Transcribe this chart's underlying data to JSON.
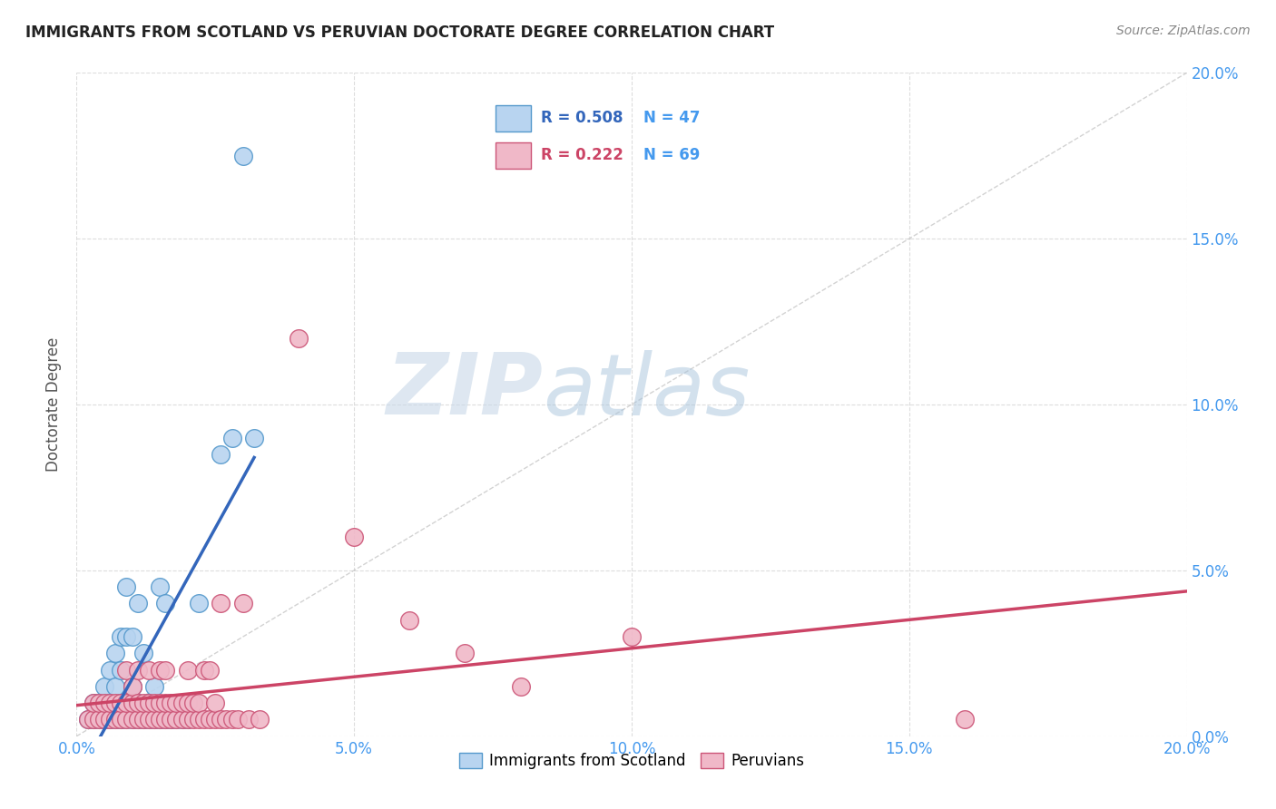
{
  "title": "IMMIGRANTS FROM SCOTLAND VS PERUVIAN DOCTORATE DEGREE CORRELATION CHART",
  "source": "Source: ZipAtlas.com",
  "ylabel": "Doctorate Degree",
  "xlim": [
    0.0,
    0.2
  ],
  "ylim": [
    0.0,
    0.2
  ],
  "xticks": [
    0.0,
    0.05,
    0.1,
    0.15,
    0.2
  ],
  "yticks": [
    0.0,
    0.05,
    0.1,
    0.15,
    0.2
  ],
  "scotland_color": "#b8d4f0",
  "scotland_edge": "#5599cc",
  "peru_color": "#f0b8c8",
  "peru_edge": "#cc5577",
  "scotland_R": 0.508,
  "scotland_N": 47,
  "peru_R": 0.222,
  "peru_N": 69,
  "tick_color": "#4499ee",
  "regression_scotland": "#3366bb",
  "regression_peru": "#cc4466",
  "diagonal_color": "#c0c0c0",
  "watermark_color": "#c8ddf0",
  "title_color": "#222222",
  "background_color": "#ffffff",
  "grid_color": "#dddddd",
  "scotland_points": [
    [
      0.002,
      0.005
    ],
    [
      0.003,
      0.005
    ],
    [
      0.003,
      0.01
    ],
    [
      0.004,
      0.005
    ],
    [
      0.004,
      0.01
    ],
    [
      0.005,
      0.005
    ],
    [
      0.005,
      0.01
    ],
    [
      0.005,
      0.015
    ],
    [
      0.006,
      0.005
    ],
    [
      0.006,
      0.01
    ],
    [
      0.006,
      0.02
    ],
    [
      0.007,
      0.005
    ],
    [
      0.007,
      0.015
    ],
    [
      0.007,
      0.025
    ],
    [
      0.008,
      0.005
    ],
    [
      0.008,
      0.01
    ],
    [
      0.008,
      0.02
    ],
    [
      0.008,
      0.03
    ],
    [
      0.009,
      0.005
    ],
    [
      0.009,
      0.03
    ],
    [
      0.009,
      0.045
    ],
    [
      0.01,
      0.005
    ],
    [
      0.01,
      0.01
    ],
    [
      0.01,
      0.015
    ],
    [
      0.01,
      0.03
    ],
    [
      0.011,
      0.005
    ],
    [
      0.011,
      0.01
    ],
    [
      0.011,
      0.04
    ],
    [
      0.012,
      0.005
    ],
    [
      0.012,
      0.025
    ],
    [
      0.013,
      0.005
    ],
    [
      0.013,
      0.01
    ],
    [
      0.014,
      0.005
    ],
    [
      0.014,
      0.015
    ],
    [
      0.015,
      0.005
    ],
    [
      0.015,
      0.045
    ],
    [
      0.016,
      0.005
    ],
    [
      0.016,
      0.04
    ],
    [
      0.017,
      0.005
    ],
    [
      0.018,
      0.005
    ],
    [
      0.019,
      0.005
    ],
    [
      0.02,
      0.005
    ],
    [
      0.022,
      0.04
    ],
    [
      0.026,
      0.085
    ],
    [
      0.028,
      0.09
    ],
    [
      0.03,
      0.175
    ],
    [
      0.032,
      0.09
    ]
  ],
  "peru_points": [
    [
      0.002,
      0.005
    ],
    [
      0.003,
      0.005
    ],
    [
      0.003,
      0.01
    ],
    [
      0.004,
      0.005
    ],
    [
      0.004,
      0.01
    ],
    [
      0.005,
      0.005
    ],
    [
      0.005,
      0.01
    ],
    [
      0.006,
      0.005
    ],
    [
      0.006,
      0.01
    ],
    [
      0.007,
      0.005
    ],
    [
      0.007,
      0.01
    ],
    [
      0.008,
      0.005
    ],
    [
      0.008,
      0.01
    ],
    [
      0.009,
      0.005
    ],
    [
      0.009,
      0.01
    ],
    [
      0.009,
      0.02
    ],
    [
      0.01,
      0.005
    ],
    [
      0.01,
      0.01
    ],
    [
      0.01,
      0.015
    ],
    [
      0.011,
      0.005
    ],
    [
      0.011,
      0.01
    ],
    [
      0.011,
      0.02
    ],
    [
      0.012,
      0.005
    ],
    [
      0.012,
      0.01
    ],
    [
      0.013,
      0.005
    ],
    [
      0.013,
      0.01
    ],
    [
      0.013,
      0.02
    ],
    [
      0.014,
      0.005
    ],
    [
      0.014,
      0.01
    ],
    [
      0.015,
      0.005
    ],
    [
      0.015,
      0.01
    ],
    [
      0.015,
      0.02
    ],
    [
      0.016,
      0.005
    ],
    [
      0.016,
      0.01
    ],
    [
      0.016,
      0.02
    ],
    [
      0.017,
      0.005
    ],
    [
      0.017,
      0.01
    ],
    [
      0.018,
      0.005
    ],
    [
      0.018,
      0.01
    ],
    [
      0.019,
      0.005
    ],
    [
      0.019,
      0.01
    ],
    [
      0.02,
      0.005
    ],
    [
      0.02,
      0.01
    ],
    [
      0.02,
      0.02
    ],
    [
      0.021,
      0.005
    ],
    [
      0.021,
      0.01
    ],
    [
      0.022,
      0.005
    ],
    [
      0.022,
      0.01
    ],
    [
      0.023,
      0.005
    ],
    [
      0.023,
      0.02
    ],
    [
      0.024,
      0.005
    ],
    [
      0.024,
      0.02
    ],
    [
      0.025,
      0.005
    ],
    [
      0.025,
      0.01
    ],
    [
      0.026,
      0.005
    ],
    [
      0.026,
      0.04
    ],
    [
      0.027,
      0.005
    ],
    [
      0.028,
      0.005
    ],
    [
      0.029,
      0.005
    ],
    [
      0.03,
      0.04
    ],
    [
      0.031,
      0.005
    ],
    [
      0.033,
      0.005
    ],
    [
      0.04,
      0.12
    ],
    [
      0.05,
      0.06
    ],
    [
      0.06,
      0.035
    ],
    [
      0.07,
      0.025
    ],
    [
      0.08,
      0.015
    ],
    [
      0.1,
      0.03
    ],
    [
      0.16,
      0.005
    ]
  ]
}
